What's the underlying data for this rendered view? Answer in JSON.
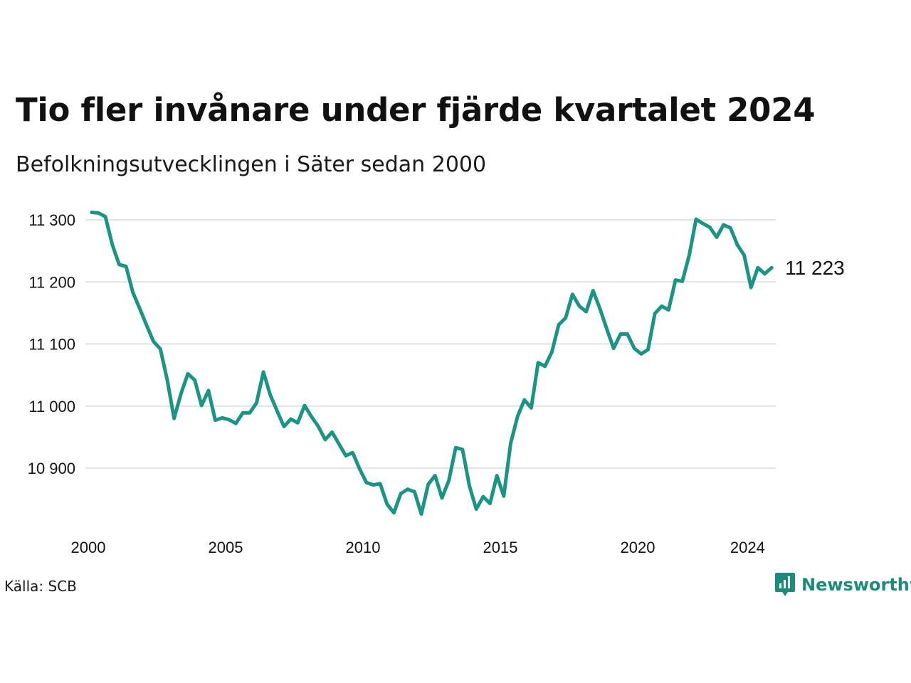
{
  "header": {
    "title": "Tio fler invånare under fjärde kvartalet 2024",
    "subtitle": "Befolkningsutvecklingen i Säter sedan 2000"
  },
  "footer": {
    "source": "Källa: SCB",
    "brand": "Newsworthy",
    "brand_icon": "newsworthy-logo-icon"
  },
  "colors": {
    "line": "#1b9483",
    "grid": "#e2e2e2",
    "brand": "#1b8c7a"
  },
  "chart_data": {
    "type": "line",
    "title": "Tio fler invånare under fjärde kvartalet 2024",
    "subtitle": "Befolkningsutvecklingen i Säter sedan 2000",
    "xlabel": "",
    "ylabel": "",
    "frequency": "quarterly",
    "xlim": [
      2000.0,
      2025.0
    ],
    "ylim": [
      10800,
      11315
    ],
    "y_ticks": [
      10900,
      11000,
      11100,
      11200,
      11300
    ],
    "y_tick_labels": [
      "10 900",
      "11 000",
      "11 100",
      "11 200",
      "11 300"
    ],
    "x_ticks": [
      2000,
      2005,
      2010,
      2015,
      2020,
      2024
    ],
    "x_tick_labels": [
      "2000",
      "2005",
      "2010",
      "2015",
      "2020",
      "2024"
    ],
    "grid": "horizontal",
    "legend": "none",
    "end_label": "11 223",
    "series": [
      {
        "values": [
          11312,
          11311,
          11305,
          11260,
          11228,
          11225,
          11183,
          11157,
          11130,
          11104,
          11092,
          11042,
          10980,
          11020,
          11052,
          11042,
          11001,
          11025,
          10977,
          10981,
          10978,
          10972,
          10989,
          10989,
          11005,
          11055,
          11018,
          10992,
          10967,
          10979,
          10973,
          11001,
          10983,
          10967,
          10946,
          10958,
          10939,
          10920,
          10925,
          10899,
          10877,
          10873,
          10875,
          10842,
          10828,
          10859,
          10866,
          10862,
          10826,
          10874,
          10888,
          10852,
          10880,
          10933,
          10930,
          10871,
          10834,
          10854,
          10843,
          10888,
          10855,
          10940,
          10983,
          11010,
          10997,
          11070,
          11064,
          11087,
          11131,
          11142,
          11180,
          11161,
          11152,
          11186,
          11157,
          11124,
          11093,
          11116,
          11116,
          11093,
          11084,
          11091,
          11149,
          11161,
          11155,
          11203,
          11201,
          11243,
          11301,
          11294,
          11288,
          11272,
          11292,
          11287,
          11260,
          11243,
          11191,
          11223,
          11213,
          11223
        ]
      }
    ]
  }
}
